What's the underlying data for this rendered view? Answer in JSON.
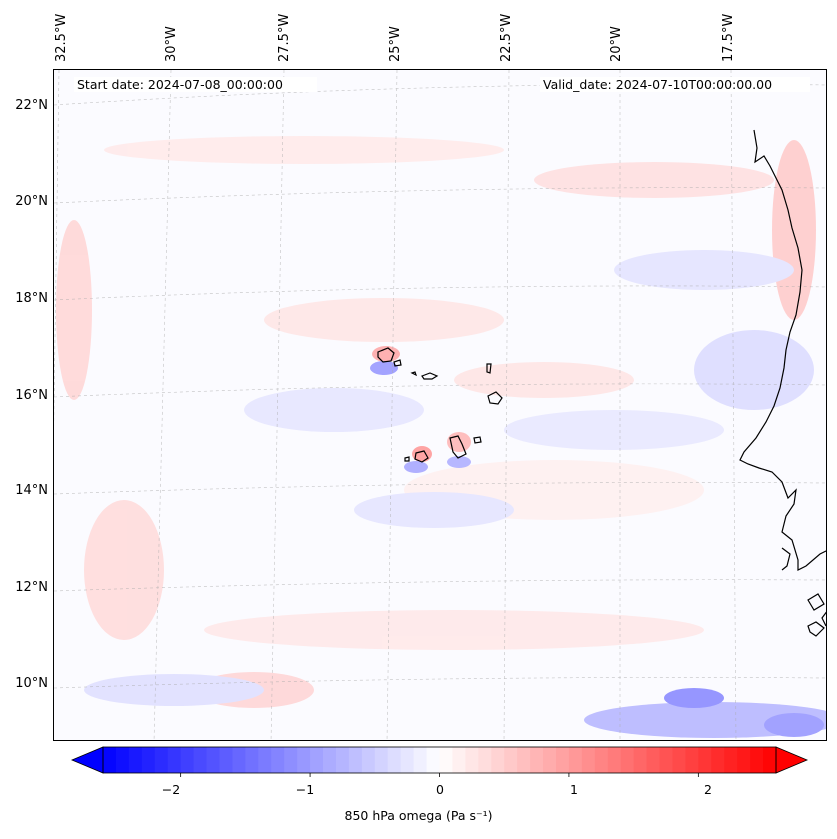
{
  "map": {
    "region": "Eastern tropical Atlantic (Cape Verde / West Africa)",
    "lon_labels": [
      "32.5°W",
      "30°W",
      "27.5°W",
      "25°W",
      "22.5°W",
      "20°W",
      "17.5°W"
    ],
    "lat_labels": [
      "22°N",
      "20°N",
      "18°N",
      "16°N",
      "14°N",
      "12°N",
      "10°N"
    ],
    "start_date": "Start date: 2024-07-08_00:00:00",
    "valid_date": "Valid_date: 2024-07-10T00:00:00.00",
    "features": [
      "cape-verde-islands",
      "west-africa-coastline",
      "gridlines",
      "omega-field"
    ]
  },
  "colorbar": {
    "label": "850 hPa omega (Pa s⁻¹)",
    "ticks": [
      "−2",
      "−1",
      "0",
      "1",
      "2"
    ],
    "tick_values": [
      -2,
      -1,
      0,
      1,
      2
    ],
    "range": [
      -2.6,
      2.6
    ],
    "extend": "both",
    "colormap": "bwr",
    "color_low": "#0000ff",
    "color_mid": "#ffffff",
    "color_high": "#ff0000"
  }
}
